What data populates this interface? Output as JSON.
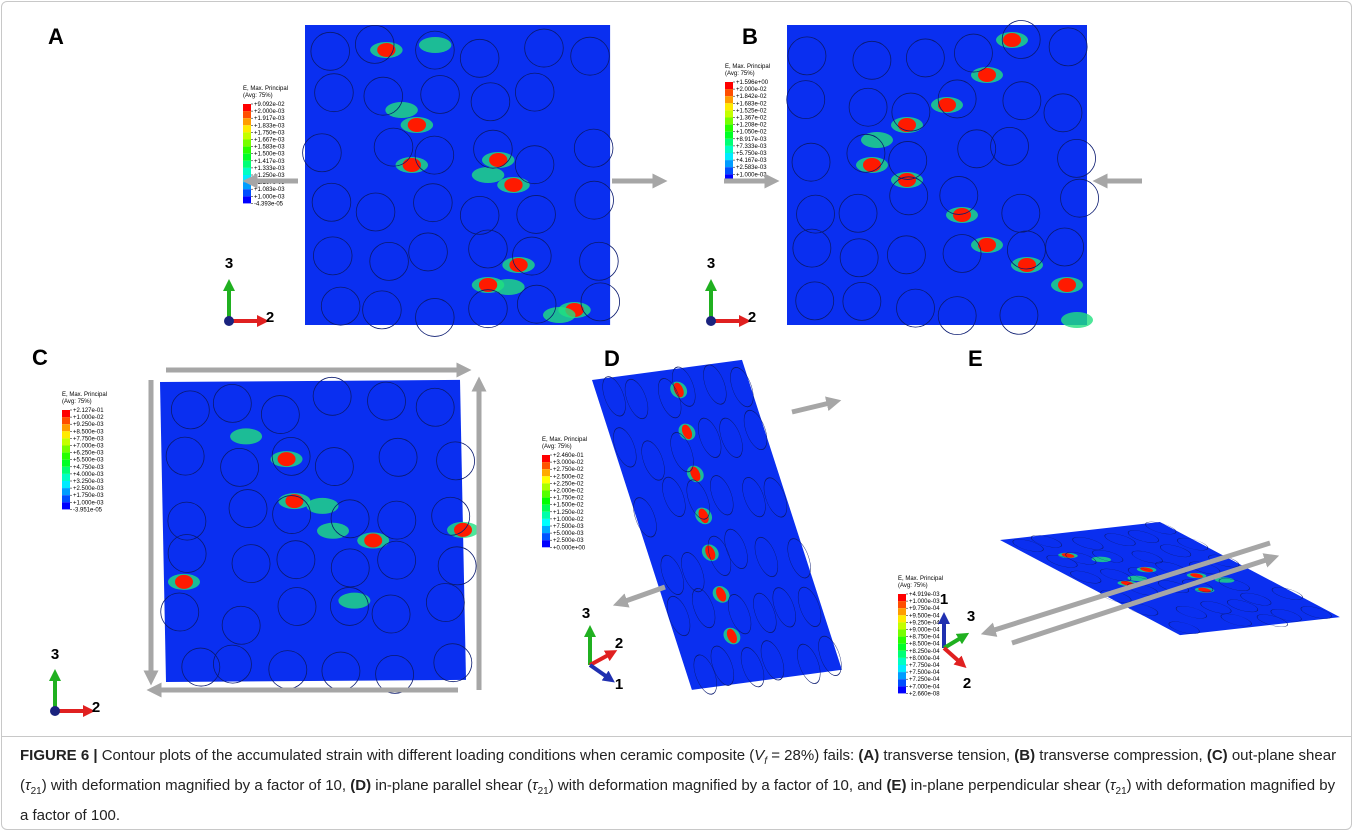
{
  "panels": [
    {
      "label": "A",
      "legend": {
        "title": "E, Max. Principal",
        "subtitle": "(Avg: 75%)",
        "values": [
          "+9.092e-02",
          "+2.000e-03",
          "+1.917e-03",
          "+1.833e-03",
          "+1.750e-03",
          "+1.667e-03",
          "+1.583e-03",
          "+1.500e-03",
          "+1.417e-03",
          "+1.333e-03",
          "+1.250e-03",
          "+1.167e-03",
          "+1.083e-03",
          "+1.000e-03",
          "-4.393e-05"
        ]
      },
      "triad": [
        "3",
        "2"
      ]
    },
    {
      "label": "B",
      "legend": {
        "title": "E, Max. Principal",
        "subtitle": "(Avg: 75%)",
        "values": [
          "+1.596e+00",
          "+2.000e-02",
          "+1.842e-02",
          "+1.683e-02",
          "+1.525e-02",
          "+1.367e-02",
          "+1.208e-02",
          "+1.050e-02",
          "+8.917e-03",
          "+7.333e-03",
          "+5.750e-03",
          "+4.167e-03",
          "+2.583e-03",
          "+1.000e-03",
          "-8.515e-02"
        ]
      },
      "triad": [
        "3",
        "2"
      ]
    },
    {
      "label": "C",
      "legend": {
        "title": "E, Max. Principal",
        "subtitle": "(Avg: 75%)",
        "values": [
          "+2.127e-01",
          "+1.000e-02",
          "+9.250e-03",
          "+8.500e-03",
          "+7.750e-03",
          "+7.000e-03",
          "+6.250e-03",
          "+5.500e-03",
          "+4.750e-03",
          "+4.000e-03",
          "+3.250e-03",
          "+2.500e-03",
          "+1.750e-03",
          "+1.000e-03",
          "-3.951e-05"
        ]
      },
      "triad": [
        "3",
        "2"
      ]
    },
    {
      "label": "D",
      "legend": {
        "title": "E, Max. Principal",
        "subtitle": "(Avg: 75%)",
        "values": [
          "+2.460e-01",
          "+3.000e-02",
          "+2.750e-02",
          "+2.500e-02",
          "+2.250e-02",
          "+2.000e-02",
          "+1.750e-02",
          "+1.500e-02",
          "+1.250e-02",
          "+1.000e-02",
          "+7.500e-03",
          "+5.000e-03",
          "+2.500e-03",
          "+0.000e+00"
        ]
      },
      "triad": [
        "3",
        "2",
        "1"
      ]
    },
    {
      "label": "E",
      "legend": {
        "title": "E, Max. Principal",
        "subtitle": "(Avg: 75%)",
        "values": [
          "+4.919e-03",
          "+1.000e-03",
          "+9.750e-04",
          "+9.500e-04",
          "+9.250e-04",
          "+9.000e-04",
          "+8.750e-04",
          "+8.500e-04",
          "+8.250e-04",
          "+8.000e-04",
          "+7.750e-04",
          "+7.500e-04",
          "+7.250e-04",
          "+7.000e-04",
          "+2.660e-08"
        ]
      },
      "triad": [
        "1",
        "3",
        "2"
      ]
    }
  ],
  "caption": [
    "FIGURE 6 |",
    " Contour plots of the accumulated strain with different loading conditions when ceramic composite (",
    "V",
    "f",
    " = 28%) fails: ",
    "(A)",
    " transverse tension, ",
    "(B)",
    " transverse compression, ",
    "(C)",
    " out-plane shear (",
    "τ",
    "21",
    ") with deformation magnified by a factor of 10, ",
    "(D)",
    " in-plane parallel shear (",
    "τ",
    "21",
    ") with deformation magnified by a factor of 10, and ",
    "(E)",
    " in-plane perpendicular shear (",
    "τ",
    "21",
    ") with deformation magnified by a factor of 100."
  ]
}
